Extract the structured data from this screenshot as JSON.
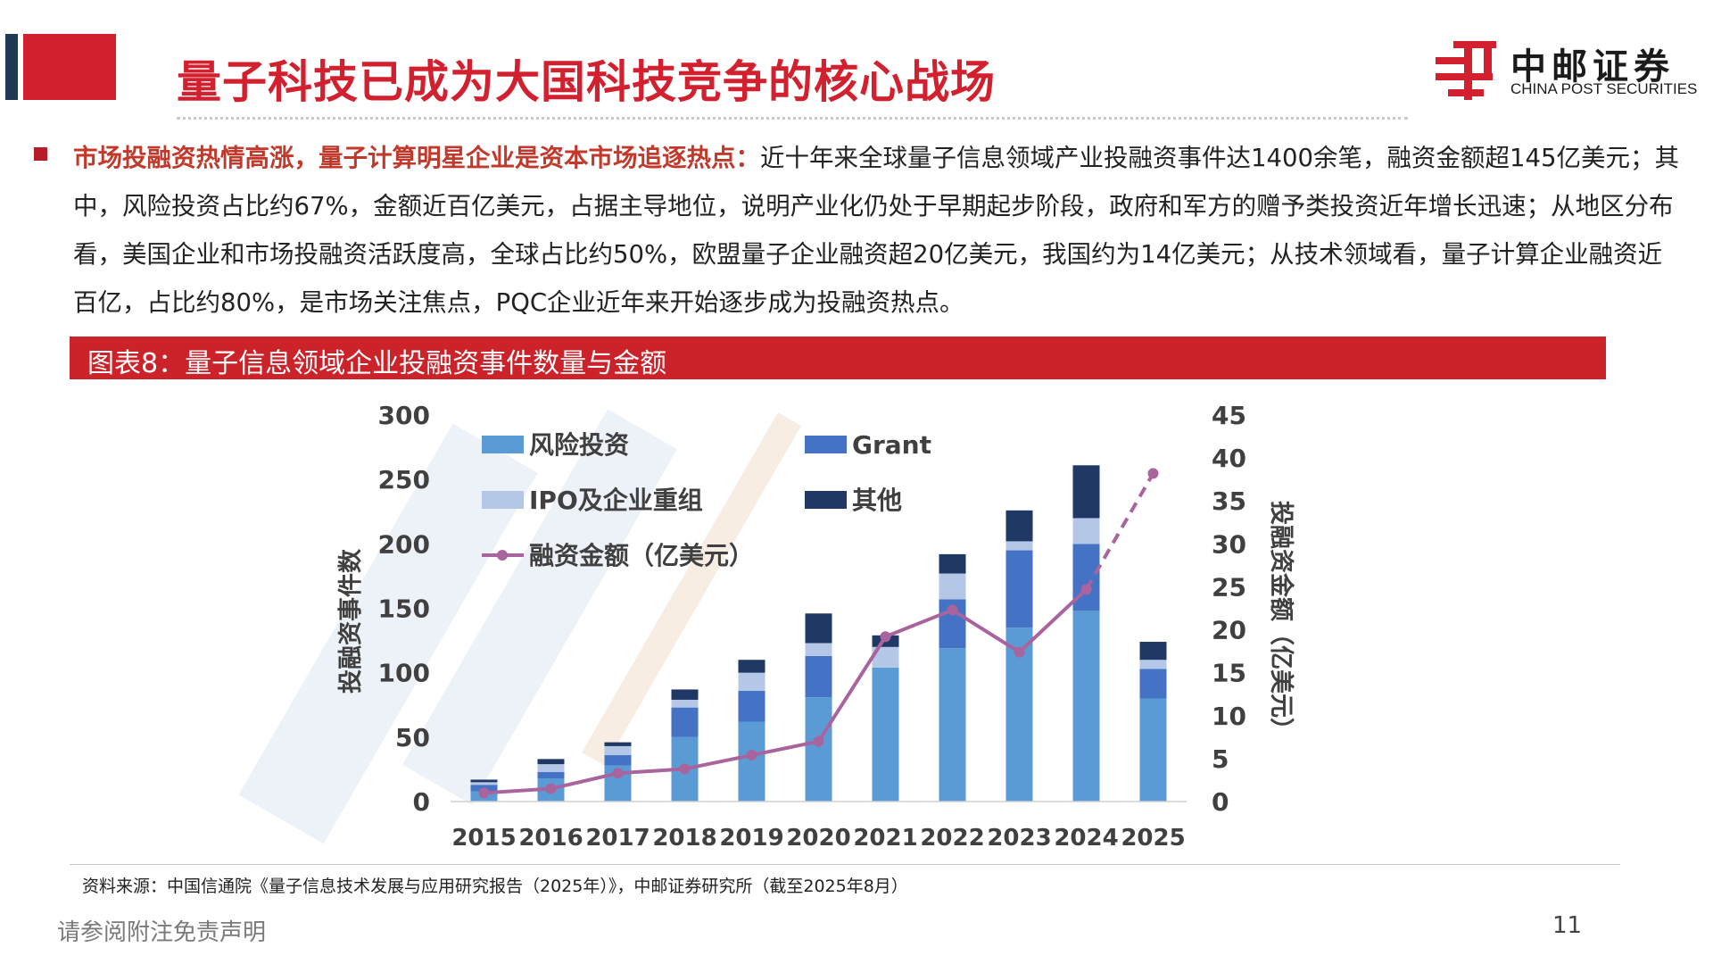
{
  "header": {
    "title": "量子科技已成为大国科技竞争的核心战场",
    "logo_name": "中邮证券",
    "logo_sub": "CHINA POST SECURITIES"
  },
  "body": {
    "lead": "市场投融资热情高涨，量子计算明星企业是资本市场追逐热点：",
    "text": "近十年来全球量子信息领域产业投融资事件达1400余笔，融资金额超145亿美元；其中，风险投资占比约67%，金额近百亿美元，占据主导地位，说明产业化仍处于早期起步阶段，政府和军方的赠予类投资近年增长迅速；从地区分布看，美国企业和市场投融资活跃度高，全球占比约50%，欧盟量子企业融资超20亿美元，我国约为14亿美元；从技术领域看，量子计算企业融资近百亿，占比约80%，是市场关注焦点，PQC企业近年来开始逐步成为投融资热点。"
  },
  "figure": {
    "title": "图表8：量子信息领域企业投融资事件数量与金额"
  },
  "chart_data": {
    "type": "bar",
    "stacked": true,
    "categories": [
      "2015",
      "2016",
      "2017",
      "2018",
      "2019",
      "2020",
      "2021",
      "2022",
      "2023",
      "2024",
      "2025"
    ],
    "series": [
      {
        "name": "风险投资",
        "color": "#5b9bd5",
        "values": [
          8,
          18,
          28,
          50,
          62,
          81,
          104,
          119,
          135,
          148,
          80
        ]
      },
      {
        "name": "Grant",
        "color": "#4472c4",
        "values": [
          5,
          5,
          8,
          23,
          24,
          32,
          0,
          38,
          60,
          52,
          23
        ]
      },
      {
        "name": "IPO及企业重组",
        "color": "#b4c7e7",
        "values": [
          2,
          6,
          7,
          6,
          14,
          10,
          16,
          20,
          7,
          20,
          7
        ]
      },
      {
        "name": "其他",
        "color": "#203864",
        "values": [
          2,
          4,
          3,
          8,
          10,
          23,
          9,
          15,
          24,
          41,
          14
        ]
      }
    ],
    "line": {
      "name": "融资金额（亿美元）",
      "color": "#a9649e",
      "axis": "right",
      "values": [
        1,
        1.5,
        3.3,
        3.8,
        5.4,
        7,
        19.2,
        22.3,
        17.4,
        24.7,
        38.2
      ],
      "dashed_last_segment": true
    },
    "ylabel": "投融资事件数",
    "ylabel_right": "投融资金额（亿美元）",
    "ylim": [
      0,
      300
    ],
    "yticks": [
      "0",
      "50",
      "100",
      "150",
      "200",
      "250",
      "300"
    ],
    "ylim_right": [
      0,
      45
    ],
    "yticks_right": [
      "0",
      "5",
      "10",
      "15",
      "20",
      "25",
      "30",
      "35",
      "40",
      "45"
    ],
    "legend_position": "top-left",
    "grid": false
  },
  "footer": {
    "source": "资料来源：中国信通院《量子信息技术发展与应用研究报告（2025年）》，中邮证券研究所（截至2025年8月）",
    "disclaimer": "请参阅附注免责声明",
    "page": "11"
  }
}
